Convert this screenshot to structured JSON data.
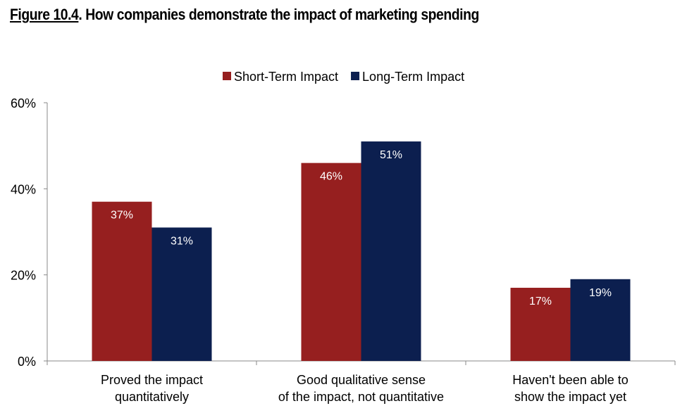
{
  "chart_data": {
    "type": "bar",
    "title_prefix": "Figure 10.4",
    "title": ". How companies demonstrate the impact of marketing spending",
    "categories": [
      [
        "Proved the impact",
        "quantitatively"
      ],
      [
        "Good qualitative sense",
        "of the impact, not quantitative"
      ],
      [
        "Haven't been able to",
        "show the impact yet"
      ]
    ],
    "series": [
      {
        "name": "Short-Term Impact",
        "color": "#961f1f",
        "values": [
          37,
          46,
          17
        ],
        "labels": [
          "37%",
          "46%",
          "17%"
        ]
      },
      {
        "name": "Long-Term Impact",
        "color": "#0c1f4f",
        "values": [
          31,
          51,
          19
        ],
        "labels": [
          "31%",
          "51%",
          "19%"
        ]
      }
    ],
    "ylim": [
      0,
      60
    ],
    "yticks": [
      0,
      20,
      40,
      60
    ],
    "ytick_labels": [
      "0%",
      "20%",
      "40%",
      "60%"
    ],
    "grid": false,
    "legend_position": "top-center"
  }
}
